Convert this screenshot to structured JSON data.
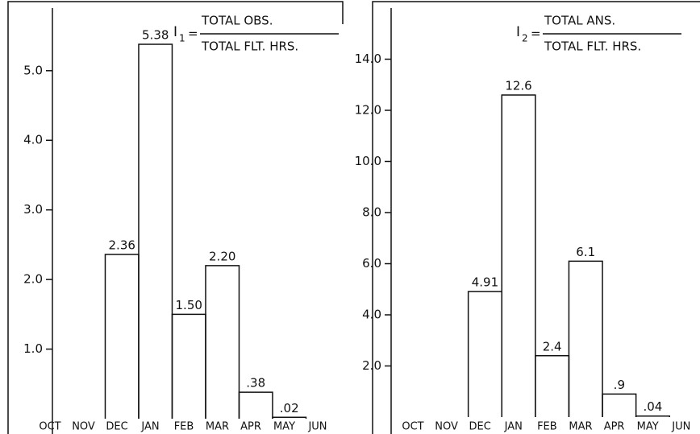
{
  "chart_data": [
    {
      "type": "step",
      "annotation": {
        "symbol": "I",
        "subscript": "1",
        "equals": "=",
        "numerator": "TOTAL OBS.",
        "denominator": "TOTAL FLT. HRS."
      },
      "categories": [
        "OCT",
        "NOV",
        "DEC",
        "JAN",
        "FEB",
        "MAR",
        "APR",
        "MAY",
        "JUN"
      ],
      "values": [
        null,
        null,
        2.36,
        5.38,
        1.5,
        2.2,
        0.38,
        0.02,
        null
      ],
      "value_labels": [
        null,
        null,
        "2.36",
        "5.38",
        "1.50",
        "2.20",
        ".38",
        ".02",
        null
      ],
      "color": "#000000",
      "ylim": [
        0,
        5.9
      ],
      "yticks": [
        {
          "value": 1,
          "label": "1.0"
        },
        {
          "value": 2,
          "label": "2.0"
        },
        {
          "value": 3,
          "label": "3.0"
        },
        {
          "value": 4,
          "label": "4.0"
        },
        {
          "value": 5,
          "label": "5.0"
        }
      ]
    },
    {
      "type": "step",
      "annotation": {
        "symbol": "I",
        "subscript": "2",
        "equals": "=",
        "numerator": "TOTAL ANS.",
        "denominator": "TOTAL FLT. HRS."
      },
      "categories": [
        "OCT",
        "NOV",
        "DEC",
        "JAN",
        "FEB",
        "MAR",
        "APR",
        "MAY",
        "JUN"
      ],
      "values": [
        null,
        null,
        4.91,
        12.6,
        2.4,
        6.1,
        0.9,
        0.04,
        null
      ],
      "value_labels": [
        null,
        null,
        "4.91",
        "12.6",
        "2.4",
        "6.1",
        ".9",
        ".04",
        null
      ],
      "color": "#000000",
      "ylim": [
        0,
        16
      ],
      "yticks": [
        {
          "value": 2,
          "label": "2.0"
        },
        {
          "value": 4,
          "label": "4.0"
        },
        {
          "value": 6,
          "label": "6.0"
        },
        {
          "value": 8,
          "label": "8.0"
        },
        {
          "value": 10,
          "label": "10.0"
        },
        {
          "value": 12,
          "label": "12.0"
        },
        {
          "value": 14,
          "label": "14.0"
        }
      ]
    }
  ]
}
